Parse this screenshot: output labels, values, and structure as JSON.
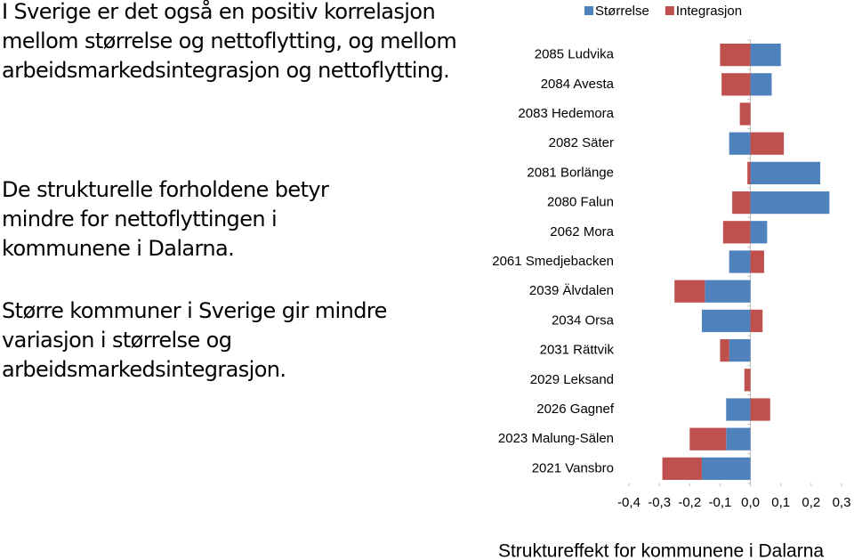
{
  "text": {
    "paragraphs": [
      "I Sverige er det også en positiv korrelasjon mellom størrelse og nettoflytting, og mellom arbeidsmarkedsintegrasjon og nettoflytting.",
      "De strukturelle forholdene betyr mindre for nettoflyttingen i kommunene i Dalarna.",
      "Større kommuner i Sverige gir mindre variasjon i størrelse og arbeidsmarkedsintegrasjon."
    ]
  },
  "chart_data": {
    "type": "stacked-barh",
    "x_label": "Struktureffekt for kommunene i Dalarna",
    "categories": [
      "2085 Ludvika",
      "2084 Avesta",
      "2083 Hedemora",
      "2082 Säter",
      "2081 Borlänge",
      "2080 Falun",
      "2062 Mora",
      "2061 Smedjebacken",
      "2039 Älvdalen",
      "2034 Orsa",
      "2031 Rättvik",
      "2029 Leksand",
      "2026 Gagnef",
      "2023 Malung-Sälen",
      "2021 Vansbro"
    ],
    "series": [
      {
        "name": "Størrelse",
        "color": "#4f81bd",
        "values": [
          0.1,
          0.07,
          0.0,
          -0.07,
          0.23,
          0.26,
          0.055,
          -0.07,
          -0.15,
          -0.16,
          -0.07,
          0.0,
          -0.08,
          -0.08,
          -0.16
        ]
      },
      {
        "name": "Integrasjon",
        "color": "#c0504d",
        "values": [
          -0.1,
          -0.095,
          -0.035,
          0.11,
          -0.01,
          -0.06,
          -0.09,
          0.045,
          -0.1,
          0.04,
          -0.03,
          -0.02,
          0.065,
          -0.12,
          -0.13
        ]
      }
    ],
    "xlim": [
      -0.4,
      0.3
    ],
    "xticks": [
      {
        "value": -0.4,
        "label": "-0,4"
      },
      {
        "value": -0.3,
        "label": "-0,3"
      },
      {
        "value": -0.2,
        "label": "-0,2"
      },
      {
        "value": -0.1,
        "label": "-0,1"
      },
      {
        "value": 0.0,
        "label": "0,0"
      },
      {
        "value": 0.1,
        "label": "0,1"
      },
      {
        "value": 0.2,
        "label": "0,2"
      },
      {
        "value": 0.3,
        "label": "0,3"
      }
    ],
    "legend": "top"
  }
}
